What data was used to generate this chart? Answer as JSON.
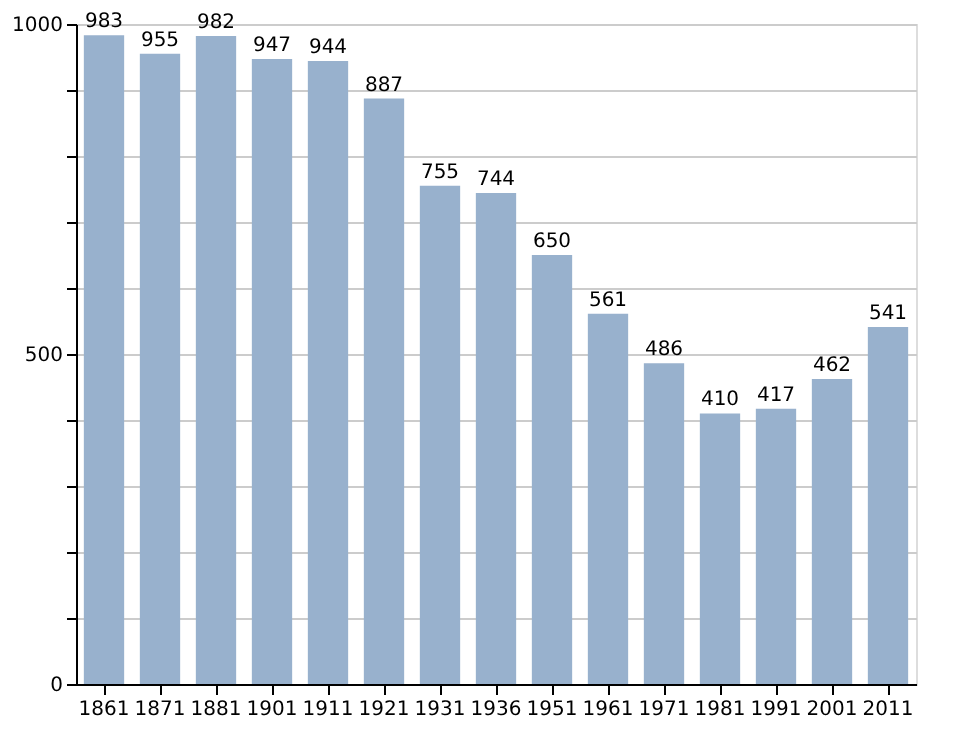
{
  "chart_data": {
    "type": "bar",
    "categories": [
      "1861",
      "1871",
      "1881",
      "1901",
      "1911",
      "1921",
      "1931",
      "1936",
      "1951",
      "1961",
      "1971",
      "1981",
      "1991",
      "2001",
      "2011"
    ],
    "values": [
      983,
      955,
      982,
      947,
      944,
      887,
      755,
      744,
      650,
      561,
      486,
      410,
      417,
      462,
      541
    ],
    "color": "#98b1cd",
    "ylim": [
      0,
      1000
    ],
    "yticks": [
      0,
      {
        "value": 100,
        "label": null
      },
      {
        "value": 200,
        "label": null
      },
      {
        "value": 300,
        "label": null
      },
      {
        "value": 400,
        "label": null
      },
      500,
      {
        "value": 600,
        "label": null
      },
      {
        "value": 700,
        "label": null
      },
      {
        "value": 800,
        "label": null
      },
      {
        "value": 900,
        "label": null
      },
      1000
    ],
    "grid": "y",
    "data_labels": true
  }
}
